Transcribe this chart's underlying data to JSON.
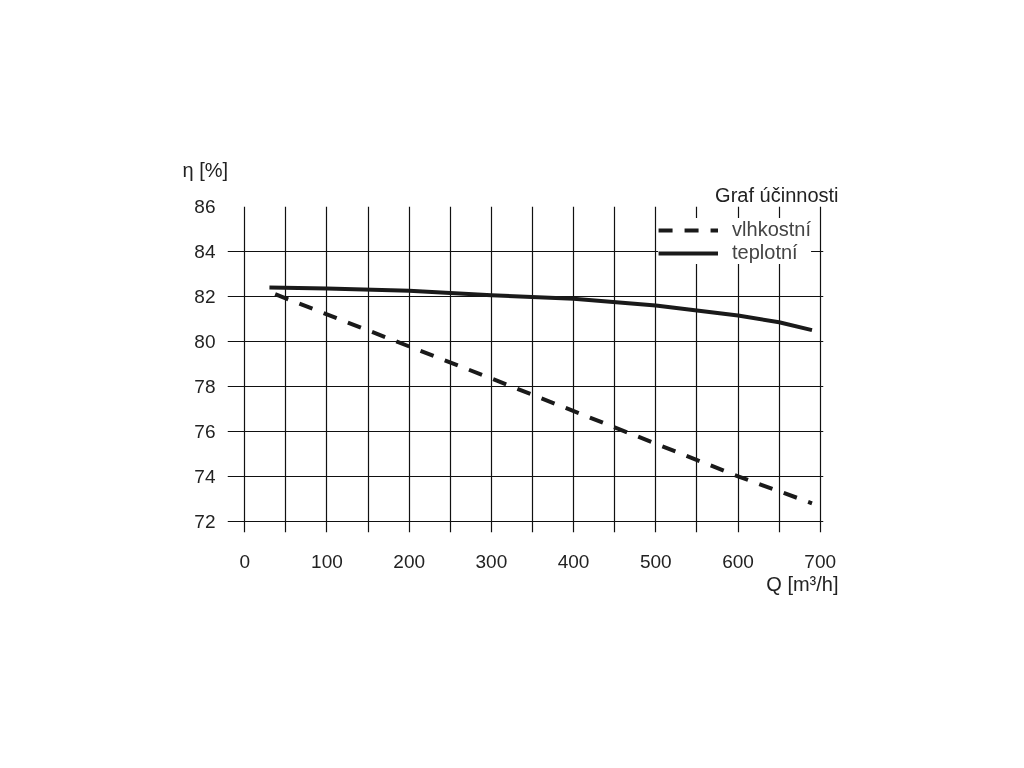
{
  "chart_data": {
    "type": "line",
    "title": "Graf účinnosti",
    "xlabel": "Q [m³/h]",
    "ylabel": "η [%]",
    "series": [
      {
        "name": "vlhkostní",
        "color": "#1a1a1a",
        "line_style": "dashed",
        "x": [
          37,
          300,
          600,
          690
        ],
        "values": [
          82.1,
          78.35,
          74.0,
          72.8
        ]
      },
      {
        "name": "teplotní",
        "color": "#1a1a1a",
        "line_style": "solid",
        "x": [
          30,
          100,
          200,
          300,
          400,
          500,
          600,
          650,
          690
        ],
        "values": [
          82.4,
          82.35,
          82.25,
          82.05,
          81.9,
          81.6,
          81.15,
          80.85,
          80.5
        ]
      }
    ],
    "xlim": [
      -21,
      704
    ],
    "ylim": [
      71.5,
      86
    ],
    "xticks": [
      0,
      100,
      200,
      300,
      400,
      500,
      600,
      700
    ],
    "yticks": [
      72,
      74,
      76,
      78,
      80,
      82,
      84,
      86
    ],
    "grid": true,
    "legend": "top right",
    "marker": "none"
  }
}
